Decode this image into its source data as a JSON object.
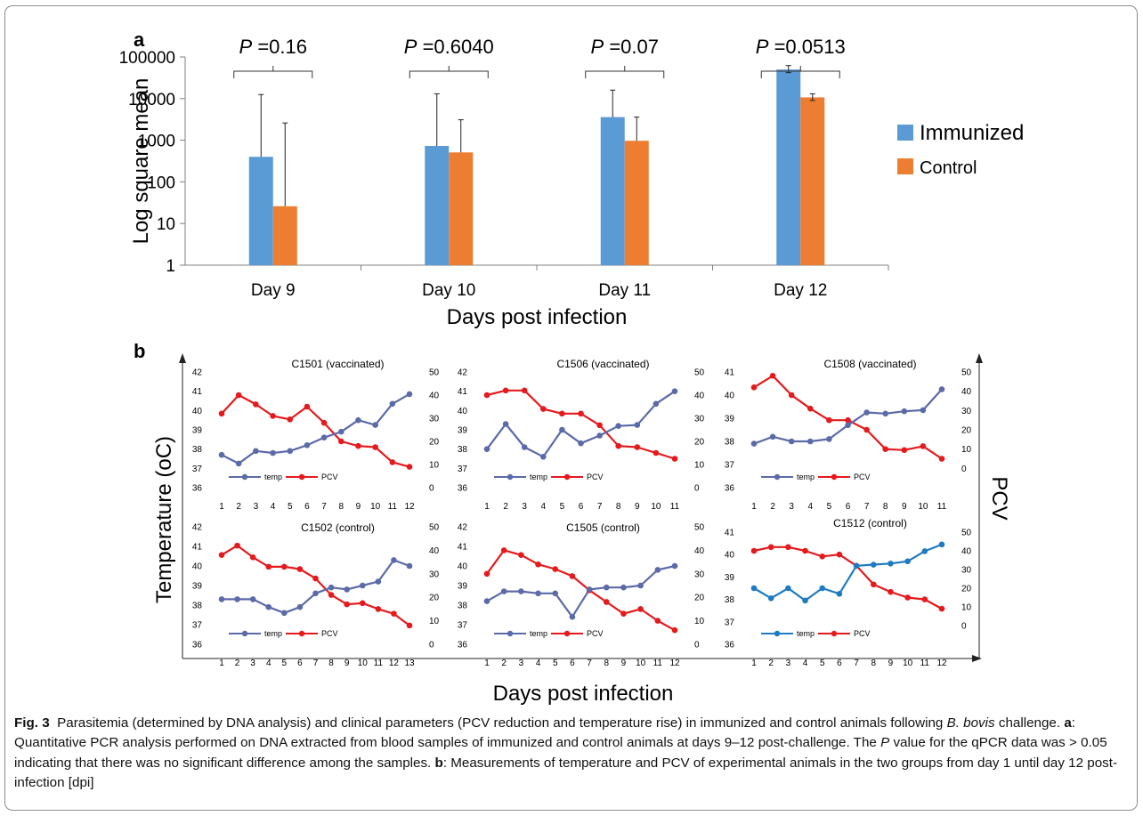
{
  "figure_label": "Fig. 3",
  "caption": {
    "lead": "Parasitemia (determined by DNA analysis) and clinical parameters (PCV reduction and temperature rise) in immunized and control animals following",
    "species": "B. bovis",
    "after_species": "challenge.",
    "label_a": "a",
    "text_a": ": Quantitative PCR analysis performed on DNA extracted from blood samples of immunized and control animals at days 9–12 post-challenge. The",
    "p_symbol": "P",
    "text_a2": "value for the qPCR data was > 0.05 indicating that there was no significant difference among the samples.",
    "label_b": "b",
    "text_b": ": Measurements of temperature and PCV of experimental animals in the two groups from day 1 until day 12 post-infection [dpi]"
  },
  "colors": {
    "immunized": "#5b9bd5",
    "control": "#ed7d31",
    "temp_purple": "#5b6aa8",
    "temp_blue": "#1f7bc1",
    "pcv_red": "#e41a1c"
  },
  "panel_a_label": "a",
  "panel_b_label": "b",
  "panel_b_ylabel_left": "Temperature (oC)",
  "panel_b_ylabel_right": "PCV",
  "panel_b_xlabel": "Days post infection",
  "chart_data": [
    {
      "type": "bar",
      "panel": "a",
      "categories": [
        "Day 9",
        "Day 10",
        "Day 11",
        "Day 12"
      ],
      "series": [
        {
          "name": "Immunized",
          "values": [
            400,
            730,
            3600,
            50000
          ],
          "error_upper": [
            12500,
            13000,
            16000,
            62000
          ],
          "error_lower": [
            400,
            730,
            3600,
            42000
          ]
        },
        {
          "name": "Control",
          "values": [
            26,
            510,
            970,
            10700
          ],
          "error_upper": [
            2600,
            3100,
            3600,
            13000
          ],
          "error_lower": [
            26,
            510,
            970,
            9000
          ]
        }
      ],
      "p_values": [
        "0.16",
        "0.6040",
        "0.07",
        "0.0513"
      ],
      "p_label": "P =",
      "xlabel": "Days post infection",
      "ylabel": "Log square mean",
      "yscale": "log",
      "yticks": [
        "1",
        "10",
        "100",
        "1000",
        "10000",
        "100000"
      ],
      "ylim": [
        1,
        100000
      ],
      "legend_position": "right"
    },
    {
      "type": "line",
      "panel": "b",
      "title": "C1501 (vaccinated)",
      "x": [
        1,
        2,
        3,
        4,
        5,
        6,
        7,
        8,
        9,
        10,
        11,
        12
      ],
      "temp": [
        37.7,
        37.25,
        37.9,
        37.8,
        37.9,
        38.2,
        38.6,
        38.9,
        39.5,
        39.25,
        40.35,
        40.85
      ],
      "pcv": [
        32,
        40,
        36,
        31,
        29.5,
        35,
        28,
        20,
        18,
        17.5,
        11,
        9
      ],
      "temp_ylim": [
        36,
        42
      ],
      "temp_yticks": [
        "36",
        "37",
        "38",
        "39",
        "40",
        "41",
        "42"
      ],
      "pcv_ylim": [
        0,
        50
      ],
      "pcv_yticks": [
        "0",
        "10",
        "20",
        "30",
        "40",
        "50"
      ],
      "xticks": [
        "1",
        "2",
        "3",
        "4",
        "5",
        "6",
        "7",
        "8",
        "9",
        "10",
        "11",
        "12"
      ],
      "legend": [
        "temp",
        "PCV"
      ],
      "temp_color": "purple"
    },
    {
      "type": "line",
      "panel": "b",
      "title": "C1506 (vaccinated)",
      "x": [
        1,
        2,
        3,
        4,
        5,
        6,
        7,
        8,
        9,
        10,
        11
      ],
      "temp": [
        38,
        39.3,
        38.1,
        37.6,
        39,
        38.3,
        38.7,
        39.2,
        39.25,
        40.35,
        41
      ],
      "pcv": [
        40,
        42,
        42,
        34,
        32,
        32,
        27,
        18,
        17.5,
        15,
        12.5
      ],
      "temp_ylim": [
        36,
        42
      ],
      "temp_yticks": [
        "36",
        "37",
        "38",
        "39",
        "40",
        "41",
        "42"
      ],
      "pcv_ylim": [
        0,
        50
      ],
      "pcv_yticks": [
        "0",
        "10",
        "20",
        "30",
        "40",
        "50"
      ],
      "xticks": [
        "1",
        "2",
        "3",
        "4",
        "5",
        "6",
        "7",
        "8",
        "9",
        "10",
        "11"
      ],
      "legend": [
        "temp",
        "PCV"
      ],
      "temp_color": "purple"
    },
    {
      "type": "line",
      "panel": "b",
      "title": "C1508 (vaccinated)",
      "x": [
        1,
        2,
        3,
        4,
        5,
        6,
        7,
        8,
        9,
        10,
        11
      ],
      "temp": [
        37.9,
        38.2,
        38,
        38,
        38.1,
        38.7,
        39.25,
        39.2,
        39.3,
        39.35,
        40.25
      ],
      "pcv": [
        42,
        48,
        38,
        31,
        25,
        25,
        20,
        10,
        9.5,
        11.5,
        5
      ],
      "temp_ylim": [
        36,
        41
      ],
      "temp_yticks": [
        "36",
        "37",
        "38",
        "39",
        "40",
        "41"
      ],
      "pcv_ylim": [
        -10,
        50
      ],
      "pcv_yticks": [
        "0",
        "10",
        "20",
        "30",
        "40",
        "50"
      ],
      "xticks": [
        "1",
        "2",
        "3",
        "4",
        "5",
        "6",
        "7",
        "8",
        "9",
        "10",
        "11"
      ],
      "legend": [
        "temp",
        "PCV"
      ],
      "temp_color": "purple"
    },
    {
      "type": "line",
      "panel": "b",
      "title": "C1502 (control)",
      "x": [
        1,
        2,
        3,
        4,
        5,
        6,
        7,
        8,
        9,
        10,
        11,
        12,
        13
      ],
      "temp": [
        38.3,
        38.3,
        38.3,
        37.9,
        37.6,
        37.9,
        38.6,
        38.9,
        38.8,
        39,
        39.2,
        40.3,
        40
      ],
      "pcv": [
        38,
        42,
        37,
        33,
        33,
        32,
        28,
        21,
        17,
        17.5,
        15,
        13,
        8
      ],
      "temp_ylim": [
        36,
        42
      ],
      "temp_yticks": [
        "36",
        "37",
        "38",
        "39",
        "40",
        "41",
        "42"
      ],
      "pcv_ylim": [
        0,
        50
      ],
      "pcv_yticks": [
        "0",
        "10",
        "20",
        "30",
        "40",
        "50"
      ],
      "xticks": [
        "1",
        "2",
        "3",
        "4",
        "5",
        "6",
        "7",
        "8",
        "9",
        "10",
        "11",
        "12",
        "13"
      ],
      "legend": [
        "temp",
        "PCV"
      ],
      "temp_color": "purple"
    },
    {
      "type": "line",
      "panel": "b",
      "title": "C1505 (control)",
      "x": [
        1,
        2,
        3,
        4,
        5,
        6,
        7,
        8,
        9,
        10,
        11,
        12
      ],
      "temp": [
        38.2,
        38.7,
        38.7,
        38.6,
        38.6,
        37.4,
        38.8,
        38.9,
        38.9,
        39,
        39.8,
        40
      ],
      "pcv": [
        30,
        40,
        38,
        34,
        32,
        29,
        23,
        18,
        13,
        15,
        10,
        6
      ],
      "temp_ylim": [
        36,
        42
      ],
      "temp_yticks": [
        "36",
        "37",
        "38",
        "39",
        "40",
        "41",
        "42"
      ],
      "pcv_ylim": [
        0,
        50
      ],
      "pcv_yticks": [
        "0",
        "10",
        "20",
        "30",
        "40",
        "50"
      ],
      "xticks": [
        "1",
        "2",
        "3",
        "4",
        "5",
        "6",
        "7",
        "8",
        "9",
        "10",
        "11",
        "12"
      ],
      "legend": [
        "temp",
        "PCV"
      ],
      "temp_color": "purple"
    },
    {
      "type": "line",
      "panel": "b",
      "title": "C1512 (control)",
      "x": [
        1,
        2,
        3,
        4,
        5,
        6,
        7,
        8,
        9,
        10,
        11,
        12
      ],
      "temp": [
        38.5,
        38.05,
        38.5,
        37.95,
        38.5,
        38.25,
        39.5,
        39.55,
        39.6,
        39.7,
        40.15,
        40.45
      ],
      "pcv": [
        40,
        42,
        42,
        40,
        37,
        38,
        32,
        22,
        18,
        15,
        14,
        9
      ],
      "temp_ylim": [
        36,
        41
      ],
      "temp_yticks": [
        "36",
        "37",
        "38",
        "39",
        "40",
        "41"
      ],
      "pcv_ylim": [
        -10,
        50
      ],
      "pcv_yticks": [
        "0",
        "10",
        "20",
        "30",
        "40",
        "50"
      ],
      "xticks": [
        "1",
        "2",
        "3",
        "4",
        "5",
        "6",
        "7",
        "8",
        "9",
        "10",
        "11",
        "12"
      ],
      "legend": [
        "temp",
        "PCV"
      ],
      "temp_color": "blue"
    }
  ]
}
